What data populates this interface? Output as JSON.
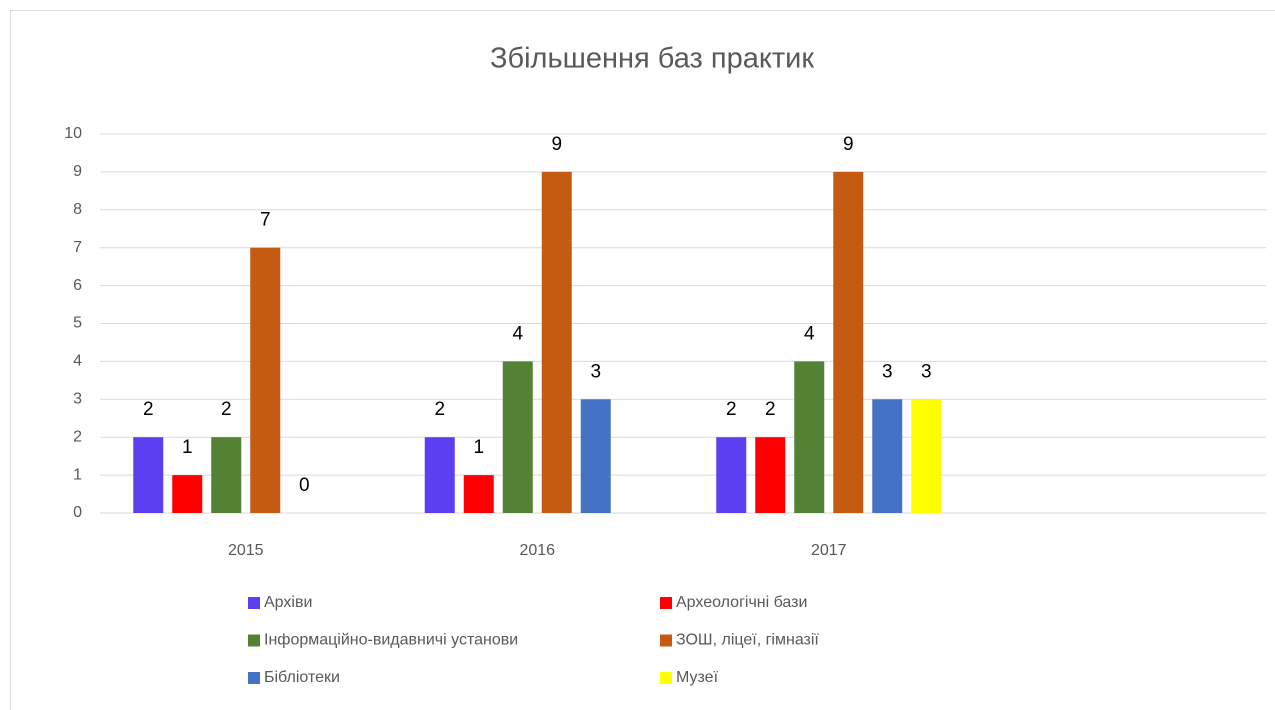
{
  "chart_data": {
    "type": "bar",
    "title": "Збільшення баз практик",
    "categories": [
      "2015",
      "2016",
      "2017",
      null
    ],
    "series": [
      {
        "name": "Архіви",
        "color": "#5b3ff0",
        "values": [
          2,
          2,
          2,
          null
        ]
      },
      {
        "name": "Археологічні бази",
        "color": "#ff0000",
        "values": [
          1,
          1,
          2,
          null
        ]
      },
      {
        "name": "Інформаційно-видавничі установи",
        "color": "#548235",
        "values": [
          2,
          4,
          4,
          null
        ]
      },
      {
        "name": "ЗОШ, ліцеї, гімназії",
        "color": "#c55a11",
        "values": [
          7,
          9,
          9,
          null
        ]
      },
      {
        "name": "Бібліотеки",
        "color": "#4472c4",
        "values": [
          0,
          3,
          3,
          null
        ]
      },
      {
        "name": "Музеї",
        "color": "#ffff00",
        "values": [
          null,
          null,
          3,
          null
        ]
      }
    ],
    "ylim": [
      0,
      10
    ],
    "yticks": [
      0,
      1,
      2,
      3,
      4,
      5,
      6,
      7,
      8,
      9,
      10
    ],
    "grid": true,
    "legend": "bottom"
  }
}
